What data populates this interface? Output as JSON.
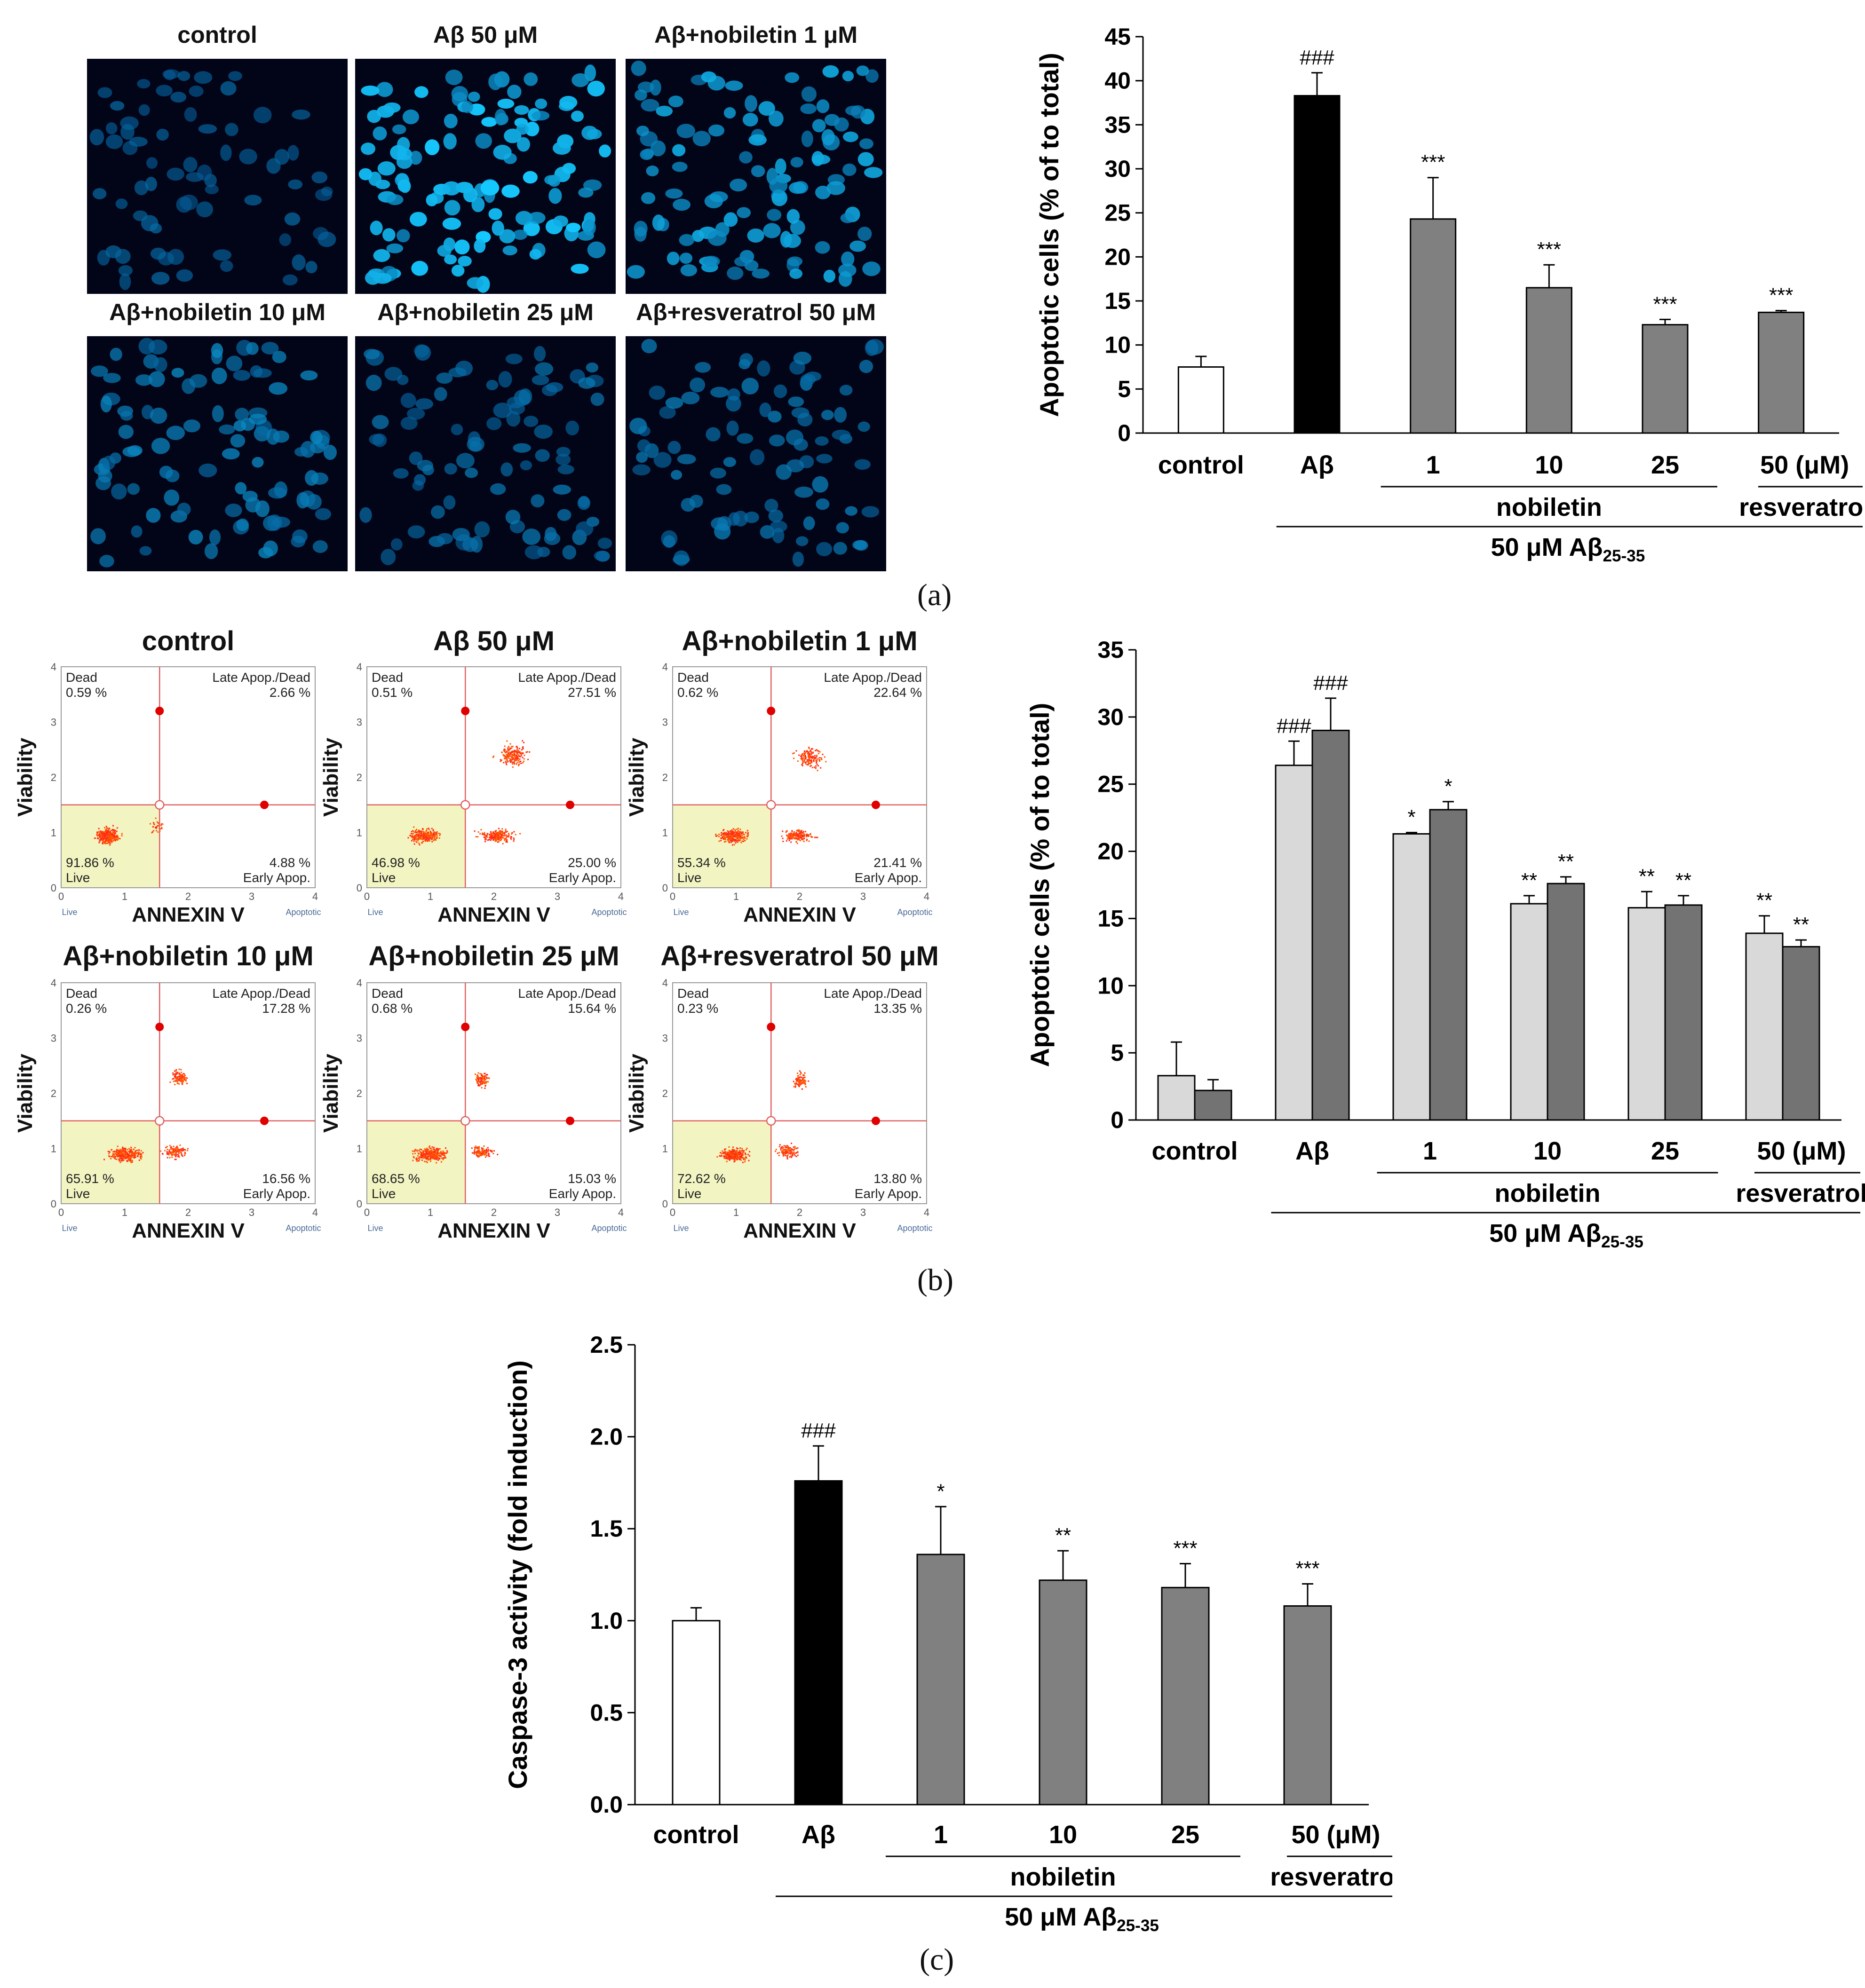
{
  "panel_labels": {
    "a": "(a)",
    "b": "(b)",
    "c": "(c)"
  },
  "micro": {
    "panels": [
      {
        "title": "control",
        "density": 0.35,
        "brightness": 0.35
      },
      {
        "title": "Aβ 50 μM",
        "density": 1.0,
        "brightness": 1.0
      },
      {
        "title": "Aβ+nobiletin 1 μM",
        "density": 0.85,
        "brightness": 0.8
      },
      {
        "title": "Aβ+nobiletin 10 μM",
        "density": 0.7,
        "brightness": 0.55
      },
      {
        "title": "Aβ+nobiletin 25 μM",
        "density": 0.6,
        "brightness": 0.45
      },
      {
        "title": "Aβ+resveratrol 50 μM",
        "density": 0.55,
        "brightness": 0.5
      }
    ]
  },
  "flow": {
    "x_label": "ANNEXIN V",
    "y_label": "Viability",
    "q_dead": "Dead",
    "q_late": "Late Apop./Dead",
    "q_live": "Live",
    "q_early": "Early Apop.",
    "axis_live": "Live",
    "axis_apoptotic": "Apoptotic",
    "ticks": [
      "0",
      "1",
      "2",
      "3",
      "4"
    ],
    "panels": [
      {
        "title": "control",
        "dead": "0.59 %",
        "late": "2.66 %",
        "live": "91.86 %",
        "early": "4.88 %"
      },
      {
        "title": "Aβ 50 μM",
        "dead": "0.51 %",
        "late": "27.51 %",
        "live": "46.98 %",
        "early": "25.00 %"
      },
      {
        "title": "Aβ+nobiletin 1 μM",
        "dead": "0.62 %",
        "late": "22.64 %",
        "live": "55.34 %",
        "early": "21.41 %"
      },
      {
        "title": "Aβ+nobiletin 10 μM",
        "dead": "0.26 %",
        "late": "17.28 %",
        "live": "65.91 %",
        "early": "16.56 %"
      },
      {
        "title": "Aβ+nobiletin 25 μM",
        "dead": "0.68 %",
        "late": "15.64 %",
        "live": "68.65 %",
        "early": "15.03 %"
      },
      {
        "title": "Aβ+resveratrol 50 μM",
        "dead": "0.23 %",
        "late": "13.35 %",
        "live": "72.62 %",
        "early": "13.80 %"
      }
    ]
  },
  "group_labels": {
    "categories": [
      "control",
      "Aβ",
      "1",
      "10",
      "25",
      "50 (μM)"
    ],
    "nobiletin": "nobiletin",
    "resveratrol": "resveratrol",
    "treatment": "50 μM Aβ",
    "treatment_sub": "25-35"
  },
  "colors": {
    "white": "#ffffff",
    "black": "#000000",
    "gray": "#808080",
    "light": "#d9d9d9",
    "dark": "#737373",
    "nuclei": "#1f5cff",
    "flow_dots": "#ff3300",
    "gate": "#f2f5c2"
  },
  "chart_data": [
    {
      "type": "bar",
      "ylabel": "Apoptotic cells (% of to total)",
      "ylim": [
        0,
        45
      ],
      "yticks": [
        0,
        5,
        10,
        15,
        20,
        25,
        30,
        35,
        40,
        45
      ],
      "values": [
        7.5,
        38.3,
        24.3,
        16.5,
        12.3,
        13.7
      ],
      "errors": [
        1.2,
        2.6,
        4.7,
        2.6,
        0.6,
        0.2
      ],
      "annotations": [
        "",
        "###",
        "***",
        "***",
        "***",
        "***"
      ],
      "bar_colors": [
        "#ffffff",
        "#000000",
        "#808080",
        "#808080",
        "#808080",
        "#808080"
      ]
    },
    {
      "type": "bar",
      "ylabel": "Apoptotic cells (% of to total)",
      "ylim": [
        0,
        35
      ],
      "yticks": [
        0,
        5,
        10,
        15,
        20,
        25,
        30,
        35
      ],
      "series": [
        {
          "values": [
            3.3,
            26.4,
            21.3,
            16.1,
            15.8,
            13.9
          ],
          "errors": [
            2.5,
            1.8,
            0.1,
            0.6,
            1.2,
            1.3
          ],
          "annotations": [
            "",
            "###",
            "*",
            "**",
            "**",
            "**"
          ]
        },
        {
          "values": [
            2.2,
            29.0,
            23.1,
            17.6,
            16.0,
            12.9
          ],
          "errors": [
            0.8,
            2.4,
            0.6,
            0.5,
            0.7,
            0.5
          ],
          "annotations": [
            "",
            "###",
            "*",
            "**",
            "**",
            "**"
          ]
        }
      ]
    },
    {
      "type": "bar",
      "ylabel": "Caspase-3 activity (fold induction)",
      "ylim": [
        0,
        2.5
      ],
      "yticks": [
        "0.0",
        "0.5",
        "1.0",
        "1.5",
        "2.0",
        "2.5"
      ],
      "values": [
        1.0,
        1.76,
        1.36,
        1.22,
        1.18,
        1.08
      ],
      "errors": [
        0.07,
        0.19,
        0.26,
        0.16,
        0.13,
        0.12
      ],
      "annotations": [
        "",
        "###",
        "*",
        "**",
        "***",
        "***"
      ],
      "bar_colors": [
        "#ffffff",
        "#000000",
        "#808080",
        "#808080",
        "#808080",
        "#808080"
      ]
    }
  ]
}
